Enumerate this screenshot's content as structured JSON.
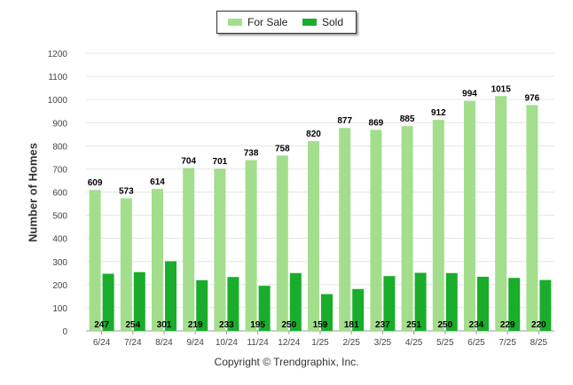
{
  "chart_data": {
    "type": "bar",
    "categories": [
      "6/24",
      "7/24",
      "8/24",
      "9/24",
      "10/24",
      "11/24",
      "12/24",
      "1/25",
      "2/25",
      "3/25",
      "4/25",
      "5/25",
      "6/25",
      "7/25",
      "8/25"
    ],
    "series": [
      {
        "name": "For Sale",
        "color": "#a3de8c",
        "values": [
          609,
          573,
          614,
          704,
          701,
          738,
          758,
          820,
          877,
          869,
          885,
          912,
          994,
          1015,
          976
        ]
      },
      {
        "name": "Sold",
        "color": "#1aad2b",
        "values": [
          247,
          254,
          301,
          219,
          233,
          195,
          250,
          159,
          181,
          237,
          251,
          250,
          234,
          229,
          220
        ]
      }
    ],
    "title": "",
    "xlabel": "",
    "ylabel": "Number of Homes",
    "ylim": [
      0,
      1200
    ],
    "yticks": [
      0,
      100,
      200,
      300,
      400,
      500,
      600,
      700,
      800,
      900,
      1000,
      1100,
      1200
    ],
    "grid": true,
    "legend": "top-center"
  },
  "footer": {
    "copyright": "Copyright © Trendgraphix, Inc."
  }
}
